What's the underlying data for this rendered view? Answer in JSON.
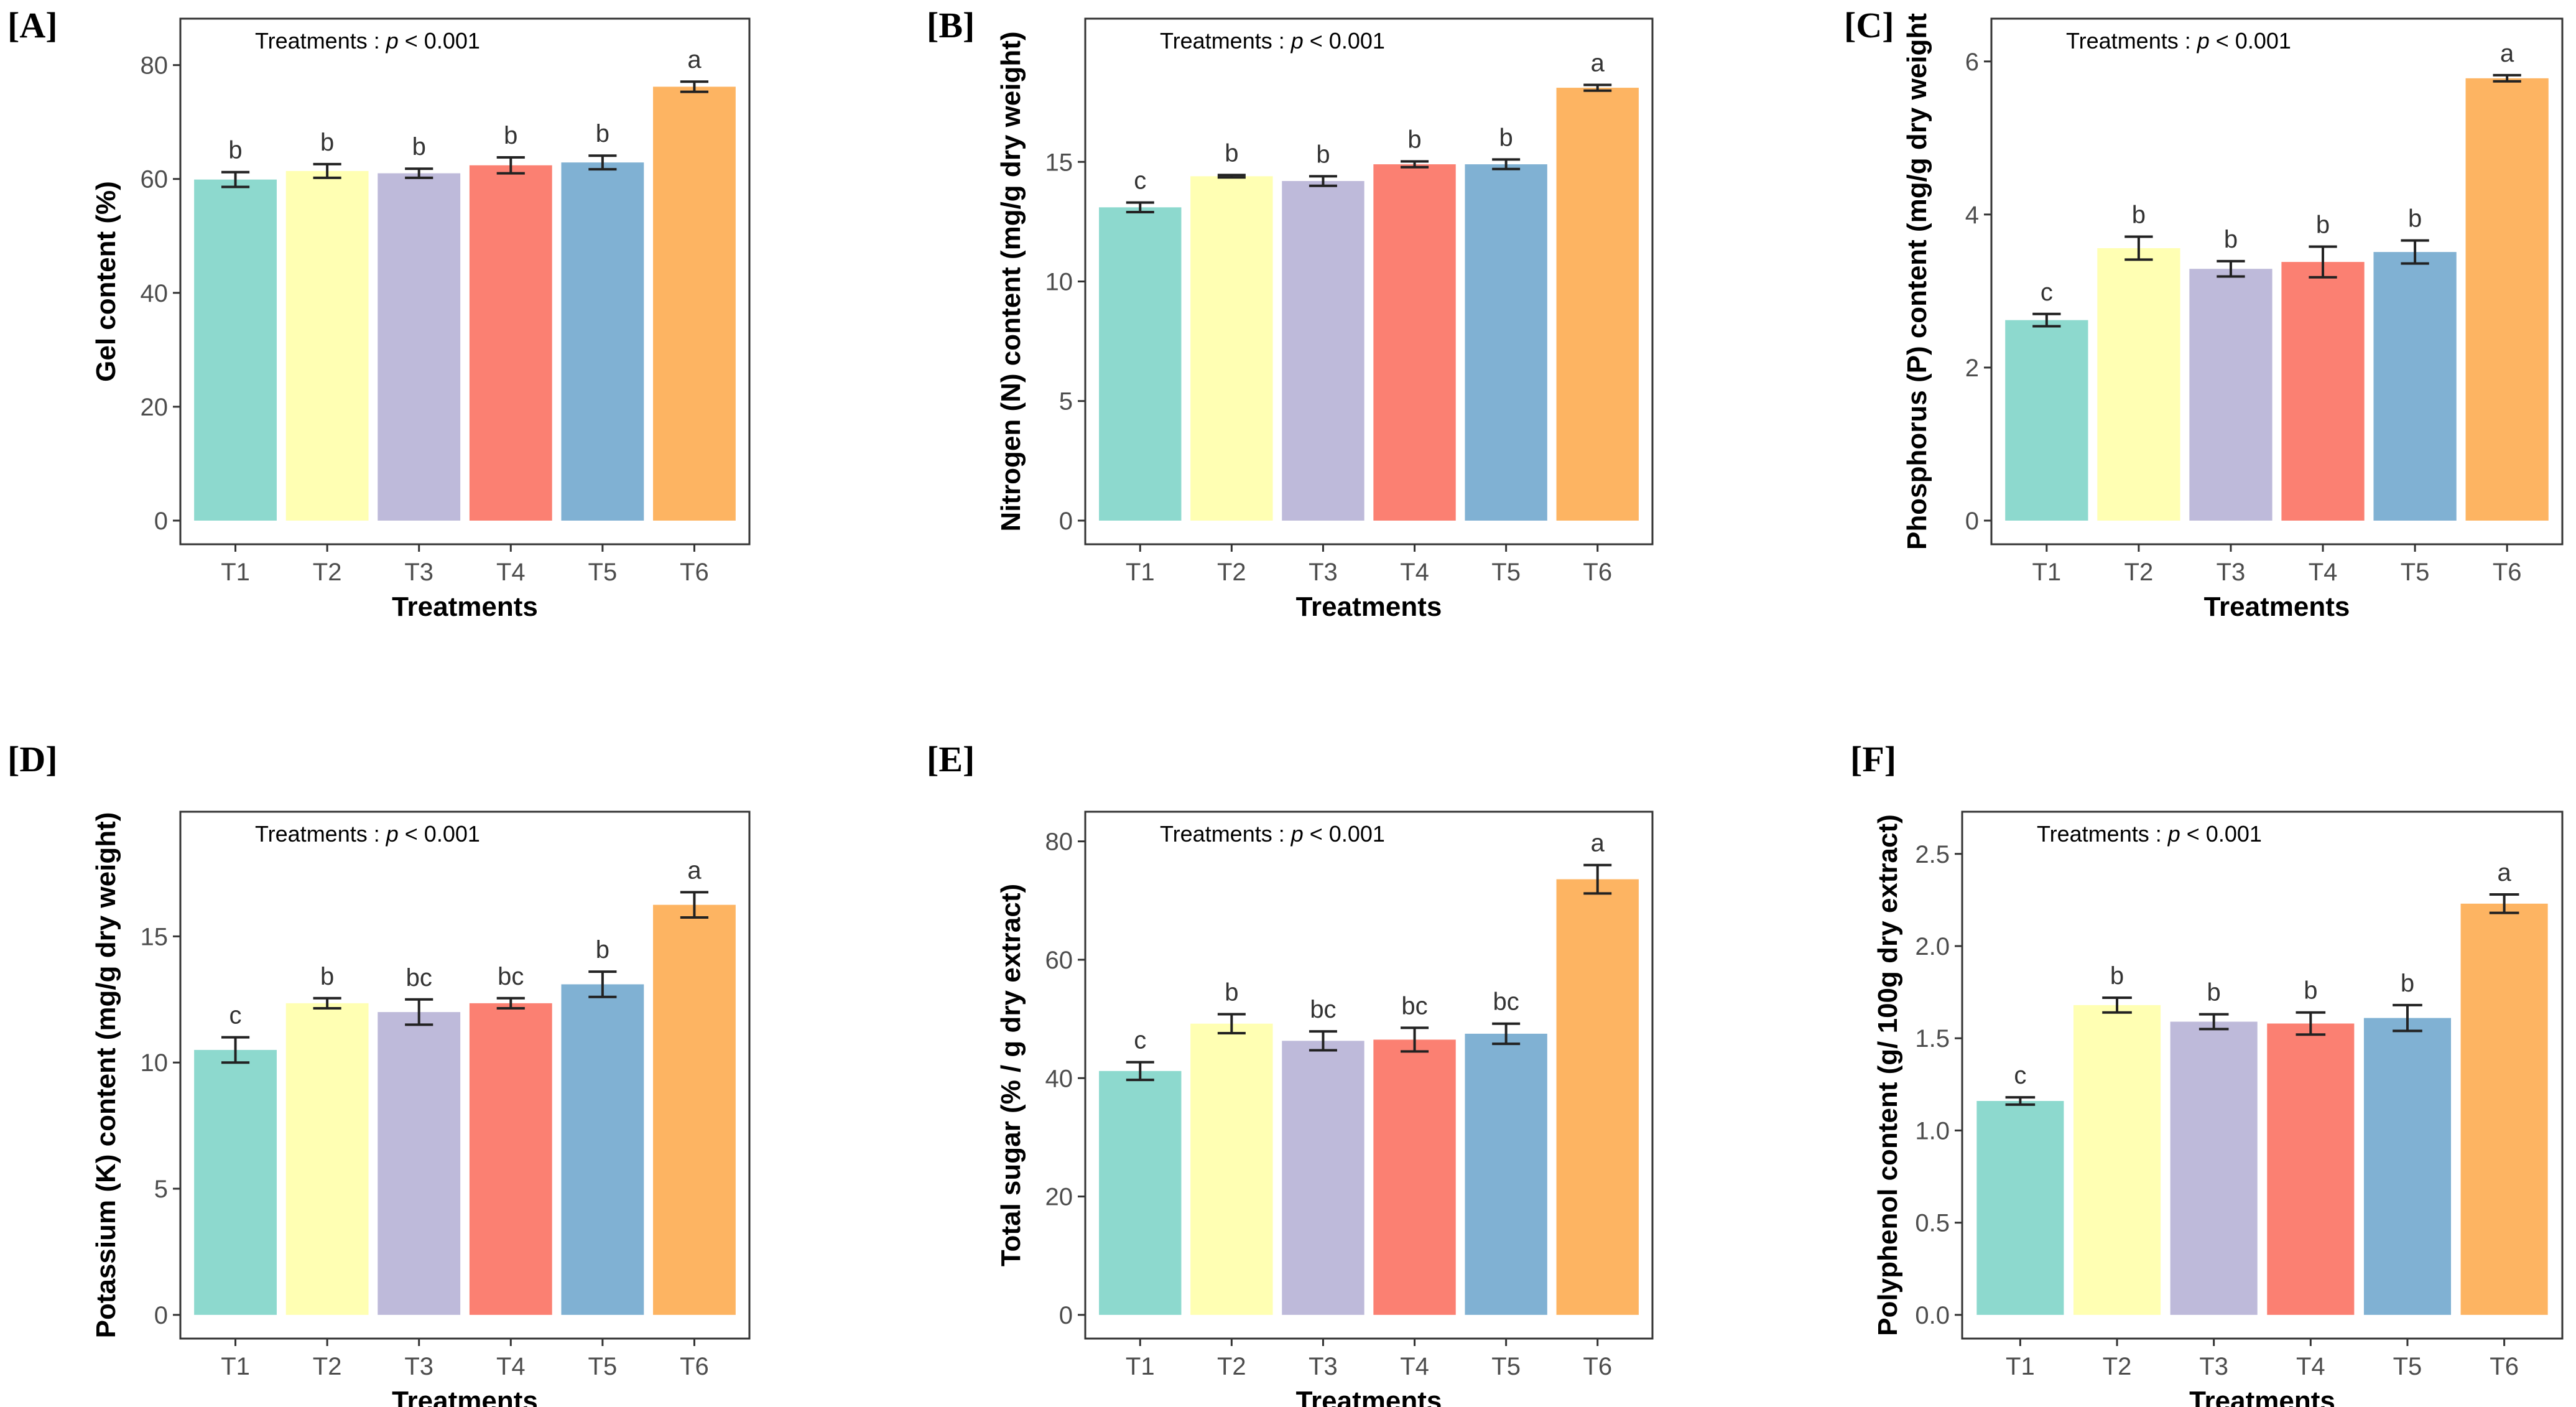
{
  "chart_data": [
    {
      "type": "bar",
      "panel_label": "[A]",
      "annotation": {
        "prefix": "Treatments : ",
        "p": "p",
        "suffix": " < 0.001"
      },
      "xlabel": "Treatments",
      "ylabel": "Gel content (%)",
      "categories": [
        "T1",
        "T2",
        "T3",
        "T4",
        "T5",
        "T6"
      ],
      "values": [
        59.9,
        61.4,
        61.0,
        62.4,
        62.9,
        76.2
      ],
      "errors": [
        1.3,
        1.2,
        0.8,
        1.4,
        1.2,
        0.9
      ],
      "letters": [
        "b",
        "b",
        "b",
        "b",
        "b",
        "a"
      ],
      "ylim": [
        0,
        84
      ],
      "yticks": [
        0,
        20,
        40,
        60,
        80
      ],
      "ytick_labels": [
        "0",
        "20",
        "40",
        "60",
        "80"
      ]
    },
    {
      "type": "bar",
      "panel_label": "[B]",
      "annotation": {
        "prefix": "Treatments : ",
        "p": "p",
        "suffix": " < 0.001"
      },
      "xlabel": "Treatments",
      "ylabel": "Nitrogen (N) content (mg/g dry weight)",
      "categories": [
        "T1",
        "T2",
        "T3",
        "T4",
        "T5",
        "T6"
      ],
      "values": [
        13.1,
        14.4,
        14.2,
        14.9,
        14.9,
        18.1
      ],
      "errors": [
        0.2,
        0.05,
        0.2,
        0.12,
        0.2,
        0.12
      ],
      "letters": [
        "c",
        "b",
        "b",
        "b",
        "b",
        "a"
      ],
      "ylim": [
        0,
        20
      ],
      "yticks": [
        0,
        5,
        10,
        15
      ],
      "ytick_labels": [
        "0",
        "5",
        "10",
        "15"
      ]
    },
    {
      "type": "bar",
      "panel_label": "[C]",
      "annotation": {
        "prefix": "Treatments : ",
        "p": "p",
        "suffix": " < 0.001"
      },
      "xlabel": "Treatments",
      "ylabel": "Phosphorus (P) content (mg/g dry weight",
      "categories": [
        "T1",
        "T2",
        "T3",
        "T4",
        "T5",
        "T6"
      ],
      "values": [
        2.62,
        3.56,
        3.29,
        3.38,
        3.51,
        5.78
      ],
      "errors": [
        0.08,
        0.15,
        0.1,
        0.2,
        0.15,
        0.04
      ],
      "letters": [
        "c",
        "b",
        "b",
        "b",
        "b",
        "a"
      ],
      "ylim": [
        0,
        6.25
      ],
      "yticks": [
        0,
        2,
        4,
        6
      ],
      "ytick_labels": [
        "0",
        "2",
        "4",
        "6"
      ]
    },
    {
      "type": "bar",
      "panel_label": "[D]",
      "annotation": {
        "prefix": "Treatments : ",
        "p": "p",
        "suffix": " < 0.001"
      },
      "xlabel": "Treatments",
      "ylabel": "Potassium (K) content (mg/g dry weight)",
      "categories": [
        "T1",
        "T2",
        "T3",
        "T4",
        "T5",
        "T6"
      ],
      "values": [
        10.5,
        12.35,
        12.0,
        12.35,
        13.1,
        16.25
      ],
      "errors": [
        0.5,
        0.2,
        0.5,
        0.2,
        0.5,
        0.5
      ],
      "letters": [
        "c",
        "b",
        "bc",
        "bc",
        "b",
        "a"
      ],
      "ylim": [
        0,
        19
      ],
      "yticks": [
        0,
        5,
        10,
        15
      ],
      "ytick_labels": [
        "0",
        "5",
        "10",
        "15"
      ]
    },
    {
      "type": "bar",
      "panel_label": "[E]",
      "annotation": {
        "prefix": "Treatments : ",
        "p": "p",
        "suffix": " < 0.001"
      },
      "xlabel": "Treatments",
      "ylabel": "Total sugar (% / g dry extract)",
      "categories": [
        "T1",
        "T2",
        "T3",
        "T4",
        "T5",
        "T6"
      ],
      "values": [
        41.2,
        49.2,
        46.3,
        46.5,
        47.5,
        73.6
      ],
      "errors": [
        1.5,
        1.6,
        1.6,
        2.0,
        1.7,
        2.4
      ],
      "letters": [
        "c",
        "b",
        "bc",
        "bc",
        "bc",
        "a"
      ],
      "ylim": [
        0,
        81
      ],
      "yticks": [
        0,
        20,
        40,
        60,
        80
      ],
      "ytick_labels": [
        "0",
        "20",
        "40",
        "60",
        "80"
      ]
    },
    {
      "type": "bar",
      "panel_label": "[F]",
      "annotation": {
        "prefix": "Treatments : ",
        "p": "p",
        "suffix": " < 0.001"
      },
      "xlabel": "Treatments",
      "ylabel": "Polyphenol content (g/ 100g dry extract)",
      "categories": [
        "T1",
        "T2",
        "T3",
        "T4",
        "T5",
        "T6"
      ],
      "values": [
        1.16,
        1.68,
        1.59,
        1.58,
        1.61,
        2.23
      ],
      "errors": [
        0.02,
        0.04,
        0.04,
        0.06,
        0.07,
        0.05
      ],
      "letters": [
        "c",
        "b",
        "b",
        "b",
        "b",
        "a"
      ],
      "ylim": [
        0,
        2.6
      ],
      "yticks": [
        0,
        0.5,
        1.0,
        1.5,
        2.0,
        2.5
      ],
      "ytick_labels": [
        "0.0",
        "0.5",
        "1.0",
        "1.5",
        "2.0",
        "2.5"
      ]
    }
  ],
  "colors": {
    "bars": [
      "#8DD9CE",
      "#FFFFB3",
      "#BEBADA",
      "#FB8072",
      "#80B1D3",
      "#FDB462"
    ],
    "frame": "#333333",
    "error_bar": "#222222"
  }
}
